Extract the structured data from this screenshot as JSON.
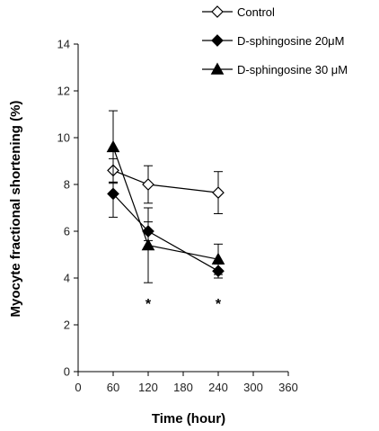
{
  "chart_data": {
    "type": "line",
    "title": "",
    "xlabel": "Time (hour)",
    "ylabel": "Myocyte fractional shortening  (%)",
    "xlim": [
      0,
      360
    ],
    "ylim": [
      0,
      14
    ],
    "xticks": [
      0,
      60,
      120,
      180,
      240,
      300,
      360
    ],
    "yticks": [
      0,
      2,
      4,
      6,
      8,
      10,
      12,
      14
    ],
    "grid": false,
    "legend_position": "top-right",
    "series": [
      {
        "name": "Control",
        "marker": "open-diamond",
        "color": "#000000",
        "x": [
          60,
          120,
          240
        ],
        "y": [
          8.6,
          8.0,
          7.65
        ],
        "err_upper": [
          0.5,
          0.8,
          0.9
        ],
        "err_lower": [
          0.5,
          0.8,
          0.9
        ]
      },
      {
        "name": "D-sphingosine 20μM",
        "marker": "filled-diamond",
        "color": "#000000",
        "x": [
          60,
          120,
          240
        ],
        "y": [
          7.6,
          6.0,
          4.3
        ],
        "err_upper": [
          0.5,
          0.4,
          0.3
        ],
        "err_lower": [
          1.0,
          0.4,
          0.3
        ]
      },
      {
        "name": "D-sphingosine 30 μM",
        "marker": "filled-triangle",
        "color": "#000000",
        "x": [
          60,
          120,
          240
        ],
        "y": [
          9.6,
          5.4,
          4.8
        ],
        "err_upper": [
          1.55,
          1.6,
          0.65
        ],
        "err_lower": [
          1.55,
          1.6,
          0.65
        ]
      }
    ],
    "annotations": [
      {
        "x": 120,
        "text": "*"
      },
      {
        "x": 240,
        "text": "*"
      }
    ]
  }
}
